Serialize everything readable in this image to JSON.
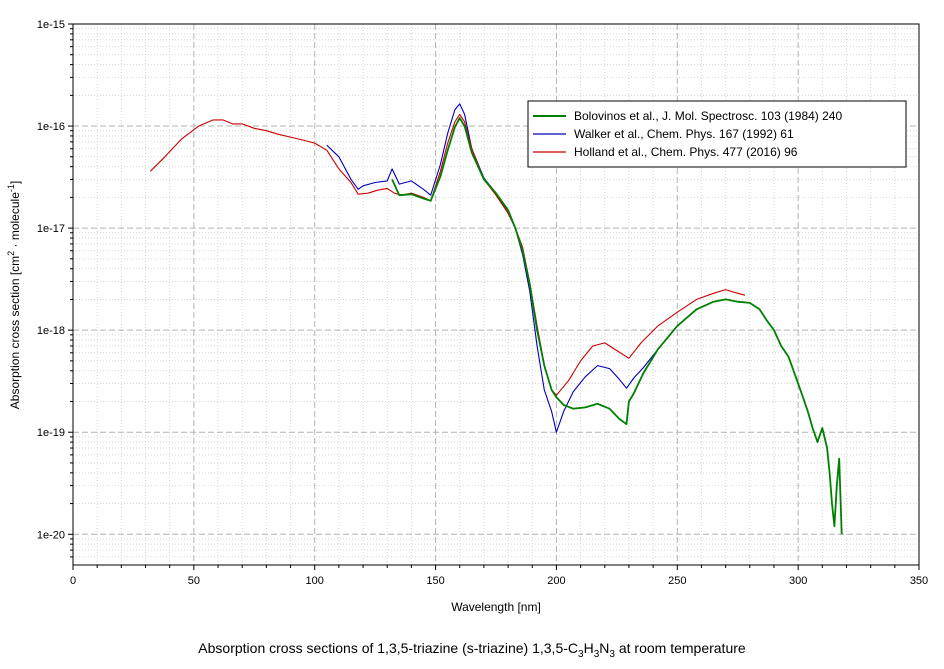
{
  "chart_data": {
    "type": "line",
    "caption": {
      "prefix": "Absorption cross sections of 1,3,5-triazine (s-triazine) 1,3,5-C",
      "sub1": "3",
      "mid1": "H",
      "sub2": "3",
      "mid2": "N",
      "sub3": "3",
      "suffix": " at room temperature"
    },
    "xlabel": "Wavelength [nm]",
    "ylabel": {
      "prefix": "Absorption cross section [cm",
      "sup1": "2",
      "mid": " · molecule",
      "sup2": "-1",
      "suffix": "]"
    },
    "x_scale": "linear",
    "y_scale": "log",
    "xlim": [
      0,
      350
    ],
    "ylim": [
      5e-21,
      1e-15
    ],
    "x_ticks": [
      0,
      50,
      100,
      150,
      200,
      250,
      300,
      350
    ],
    "x_tick_labels": [
      "0",
      "50",
      "100",
      "150",
      "200",
      "250",
      "300",
      "350"
    ],
    "y_ticks": [
      1e-20,
      1e-19,
      1e-18,
      1e-17,
      1e-16,
      1e-15
    ],
    "y_tick_labels": [
      "1e-20",
      "1e-19",
      "1e-18",
      "1e-17",
      "1e-16",
      "1e-15"
    ],
    "grid": true,
    "legend_position": "top-right",
    "series": [
      {
        "name": "Bolovinos et al., J. Mol. Spectrosc. 103 (1984) 240",
        "color": "#008000",
        "x": [
          132,
          135,
          140,
          145,
          148,
          152,
          155,
          158,
          160,
          162,
          165,
          170,
          175,
          180,
          183,
          186,
          189,
          192,
          195,
          198,
          200,
          203,
          207,
          212,
          217,
          222,
          226,
          229,
          230,
          232,
          236,
          242,
          250,
          258,
          265,
          270,
          275,
          280,
          284,
          287,
          290,
          293,
          296,
          299,
          302,
          304,
          306,
          308,
          310,
          312,
          313,
          314,
          315,
          316,
          317,
          318
        ],
        "y": [
          3e-17,
          2.1e-17,
          2.15e-17,
          1.95e-17,
          1.85e-17,
          3.2e-17,
          5.8e-17,
          9.8e-17,
          1.2e-16,
          1e-16,
          5.5e-17,
          3e-17,
          2.2e-17,
          1.5e-17,
          1e-17,
          6e-18,
          2.8e-18,
          1e-18,
          4.5e-19,
          2.6e-19,
          2.2e-19,
          1.85e-19,
          1.7e-19,
          1.75e-19,
          1.9e-19,
          1.7e-19,
          1.35e-19,
          1.2e-19,
          2e-19,
          2.4e-19,
          3.8e-19,
          6.5e-19,
          1.1e-18,
          1.6e-18,
          1.9e-18,
          2e-18,
          1.9e-18,
          1.85e-18,
          1.6e-18,
          1.25e-18,
          1e-18,
          7e-19,
          5.5e-19,
          3.5e-19,
          2.2e-19,
          1.6e-19,
          1.1e-19,
          8e-20,
          1.1e-19,
          7e-20,
          4e-20,
          2e-20,
          1.2e-20,
          3e-20,
          5.5e-20,
          1e-20
        ]
      },
      {
        "name": "Walker et al., Chem. Phys. 167 (1992) 61",
        "color": "#0000bb",
        "x": [
          105,
          110,
          115,
          118,
          120,
          125,
          130,
          132,
          135,
          140,
          145,
          148,
          152,
          155,
          158,
          160,
          162,
          165,
          170,
          175,
          180,
          183,
          186,
          189,
          192,
          195,
          198,
          200,
          203,
          207,
          212,
          217,
          222,
          226,
          229,
          232,
          236,
          242
        ],
        "y": [
          6.5e-17,
          5e-17,
          3e-17,
          2.4e-17,
          2.6e-17,
          2.8e-17,
          2.9e-17,
          3.8e-17,
          2.7e-17,
          2.9e-17,
          2.4e-17,
          2.1e-17,
          4.2e-17,
          8.5e-17,
          1.45e-16,
          1.65e-16,
          1.3e-16,
          6e-17,
          3.1e-17,
          2.2e-17,
          1.4e-17,
          1e-17,
          5.5e-18,
          2.4e-18,
          7e-19,
          2.6e-19,
          1.6e-19,
          1e-19,
          1.6e-19,
          2.5e-19,
          3.5e-19,
          4.5e-19,
          4.2e-19,
          3.3e-19,
          2.7e-19,
          3.4e-19,
          4.3e-19,
          6.5e-19
        ]
      },
      {
        "name": "Holland et al., Chem. Phys. 477 (2016) 96",
        "color": "#cc0000",
        "x": [
          32,
          38,
          45,
          52,
          58,
          62,
          66,
          70,
          75,
          80,
          85,
          90,
          95,
          100,
          105,
          110,
          115,
          118,
          122,
          126,
          130,
          133,
          136,
          140,
          145,
          148,
          152,
          155,
          158,
          160,
          162,
          165,
          170,
          175,
          180,
          183,
          186,
          189,
          192,
          195,
          198,
          200,
          205,
          210,
          215,
          220,
          225,
          230,
          235,
          242,
          250,
          258,
          265,
          270,
          275,
          278
        ],
        "y": [
          3.6e-17,
          5e-17,
          7.5e-17,
          1e-16,
          1.15e-16,
          1.15e-16,
          1.05e-16,
          1.05e-16,
          9.5e-17,
          9e-17,
          8.3e-17,
          7.8e-17,
          7.3e-17,
          6.8e-17,
          5.8e-17,
          3.8e-17,
          2.8e-17,
          2.15e-17,
          2.2e-17,
          2.35e-17,
          2.45e-17,
          2.2e-17,
          2.1e-17,
          2.2e-17,
          2e-17,
          1.85e-17,
          3.6e-17,
          6.8e-17,
          1.1e-16,
          1.3e-16,
          1.1e-16,
          6e-17,
          3e-17,
          2.1e-17,
          1.4e-17,
          1e-17,
          6.5e-18,
          2.9e-18,
          1.1e-18,
          4.5e-19,
          2.6e-19,
          2.3e-19,
          3.2e-19,
          5e-19,
          7e-19,
          7.5e-19,
          6.3e-19,
          5.3e-19,
          7.5e-19,
          1.1e-18,
          1.5e-18,
          2e-18,
          2.3e-18,
          2.5e-18,
          2.3e-18,
          2.2e-18
        ]
      }
    ]
  }
}
